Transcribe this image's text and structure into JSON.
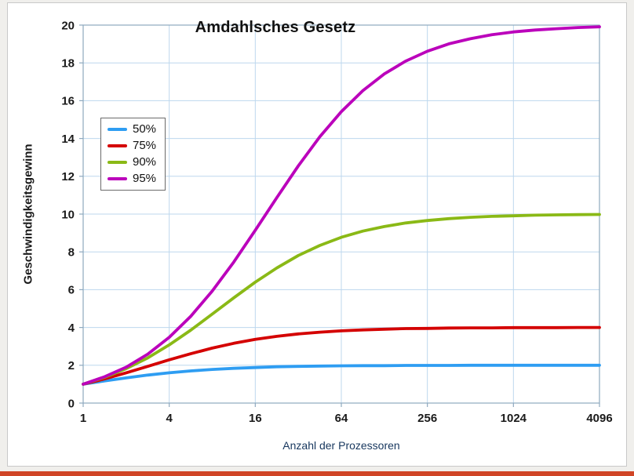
{
  "page": {
    "background": "#f0efec",
    "card_background": "#ffffff",
    "card_border": "#c9c9c9",
    "accent_color": "#d04526"
  },
  "chart_data": {
    "type": "line",
    "title": "Amdahlsches Gesetz",
    "xlabel": "Anzahl der Prozessoren",
    "ylabel": "Geschwindigkeitsgewinn",
    "x_scale": "log2",
    "xlim": [
      1,
      4096
    ],
    "ylim": [
      0,
      20
    ],
    "x_ticks": [
      1,
      4,
      16,
      64,
      256,
      1024,
      4096
    ],
    "y_ticks": [
      0,
      2,
      4,
      6,
      8,
      10,
      12,
      14,
      16,
      18,
      20
    ],
    "grid": true,
    "grid_color": "#bdd7ee",
    "axis_color": "#8ea9bf",
    "tick_color": "#1a1a1a",
    "axis_label_color": "#17375e",
    "legend_position": "left-middle",
    "x": [
      1,
      1.41,
      2,
      2.83,
      4,
      5.66,
      8,
      11.31,
      16,
      22.63,
      32,
      45.25,
      64,
      90.51,
      128,
      181.02,
      256,
      362.04,
      512,
      724.08,
      1024,
      1448.15,
      2048,
      2896.31,
      4096
    ],
    "series": [
      {
        "name": "50%",
        "color": "#2e9df2",
        "values": [
          1,
          1.17,
          1.33,
          1.48,
          1.6,
          1.7,
          1.78,
          1.84,
          1.88,
          1.92,
          1.94,
          1.96,
          1.97,
          1.98,
          1.98,
          1.99,
          1.99,
          1.99,
          2,
          2,
          2,
          2,
          2,
          2,
          2
        ]
      },
      {
        "name": "75%",
        "color": "#d40000",
        "values": [
          1,
          1.28,
          1.6,
          1.94,
          2.29,
          2.61,
          2.91,
          3.16,
          3.37,
          3.53,
          3.66,
          3.75,
          3.82,
          3.87,
          3.91,
          3.94,
          3.95,
          3.97,
          3.98,
          3.98,
          3.99,
          3.99,
          3.99,
          4,
          4
        ]
      },
      {
        "name": "90%",
        "color": "#8ab916",
        "values": [
          1,
          1.36,
          1.82,
          2.39,
          3.08,
          3.86,
          4.71,
          5.57,
          6.4,
          7.15,
          7.81,
          8.34,
          8.77,
          9.1,
          9.34,
          9.53,
          9.66,
          9.76,
          9.83,
          9.88,
          9.91,
          9.94,
          9.96,
          9.97,
          9.98
        ]
      },
      {
        "name": "95%",
        "color": "#bb00bb",
        "values": [
          1,
          1.39,
          1.9,
          2.59,
          3.48,
          4.59,
          5.93,
          7.46,
          9.14,
          10.87,
          12.55,
          14.09,
          15.42,
          16.53,
          17.42,
          18.1,
          18.62,
          19.01,
          19.28,
          19.49,
          19.64,
          19.74,
          19.81,
          19.87,
          19.91
        ]
      }
    ]
  }
}
